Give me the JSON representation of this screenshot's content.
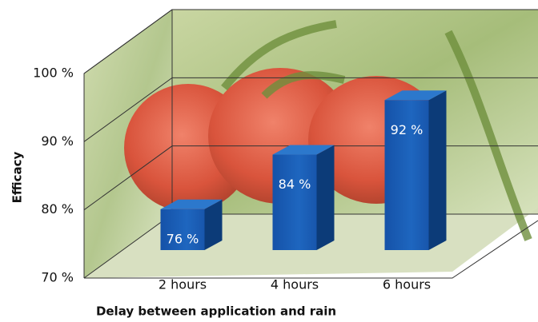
{
  "chart_data": {
    "type": "bar3d",
    "y_label": "Efficacy",
    "x_label": "Delay between application and rain",
    "categories": [
      "2 hours",
      "4 hours",
      "6 hours"
    ],
    "values": [
      76,
      84,
      92
    ],
    "value_labels": [
      "76 %",
      "84 %",
      "92 %"
    ],
    "color": "#1b5fb0",
    "ylim": [
      70,
      100
    ],
    "yticks": [
      {
        "value": 70,
        "label": "70 %"
      },
      {
        "value": 80,
        "label": "80 %"
      },
      {
        "value": 90,
        "label": "90 %"
      },
      {
        "value": 100,
        "label": "100 %"
      }
    ],
    "grid": true
  }
}
